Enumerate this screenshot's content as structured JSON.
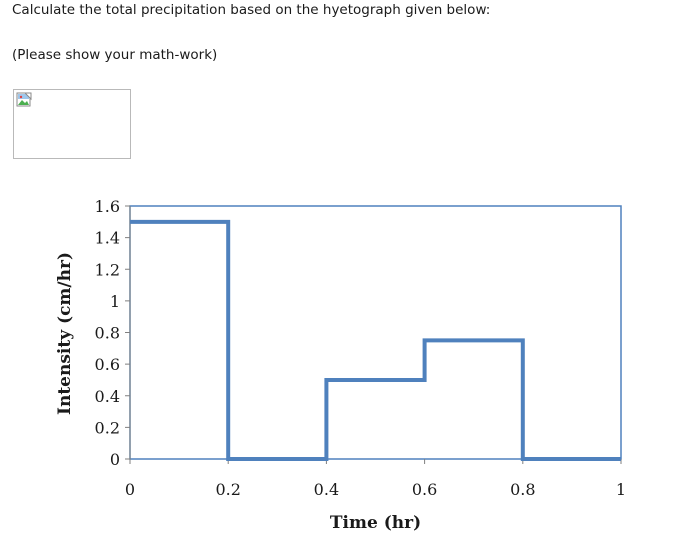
{
  "question": {
    "line1": "Calculate the total precipitation based on the hyetograph given below:",
    "line2": "(Please show your math-work)"
  },
  "broken_image": {
    "icon": "broken-image-icon"
  },
  "chart_data": {
    "type": "line",
    "step": true,
    "xlabel": "Time (hr)",
    "ylabel": "Intensity (cm/hr)",
    "xlim": [
      0,
      1
    ],
    "ylim": [
      0,
      1.6
    ],
    "xticks": [
      0,
      0.2,
      0.4,
      0.6,
      0.8,
      1
    ],
    "xtick_labels": [
      "0",
      "0.2",
      "0.4",
      "0.6",
      "0.8",
      "1"
    ],
    "yticks": [
      0,
      0.2,
      0.4,
      0.6,
      0.8,
      1,
      1.2,
      1.4,
      1.6
    ],
    "ytick_labels": [
      "0",
      "0.2",
      "0.4",
      "0.6",
      "0.8",
      "1",
      "1.2",
      "1.4",
      "1.6"
    ],
    "grid": false,
    "line_color": "#4f81bd",
    "frame_color": "#4f81bd",
    "series": [
      {
        "x": [
          0,
          0.2,
          0.2,
          0.4,
          0.4,
          0.6,
          0.6,
          0.8,
          0.8,
          1.0
        ],
        "y": [
          1.5,
          1.5,
          0,
          0,
          0.5,
          0.5,
          0.75,
          0.75,
          0,
          0
        ]
      }
    ]
  }
}
